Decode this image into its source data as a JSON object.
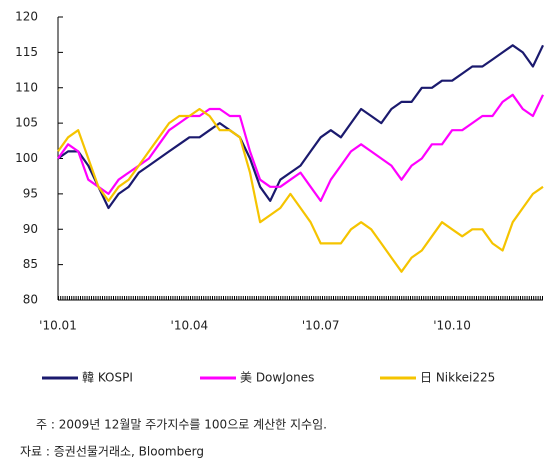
{
  "chart_data": {
    "type": "line",
    "categories": [
      "'10.01",
      null,
      null,
      null,
      null,
      null,
      null,
      null,
      null,
      null,
      null,
      null,
      null,
      "'10.04",
      null,
      null,
      null,
      null,
      null,
      null,
      null,
      null,
      null,
      null,
      null,
      null,
      "'10.07",
      null,
      null,
      null,
      null,
      null,
      null,
      null,
      null,
      null,
      null,
      null,
      null,
      "'10.10",
      null,
      null,
      null,
      null,
      null,
      null,
      null,
      null,
      null
    ],
    "series": [
      {
        "name": "韓 KOSPI",
        "color": "#1b1a6e",
        "values": [
          100,
          101,
          101,
          99,
          96,
          93,
          95,
          96,
          98,
          99,
          100,
          101,
          102,
          103,
          103,
          104,
          105,
          104,
          103,
          100,
          96,
          94,
          97,
          98,
          99,
          101,
          103,
          104,
          103,
          105,
          107,
          106,
          105,
          107,
          108,
          108,
          110,
          110,
          111,
          111,
          112,
          113,
          113,
          114,
          115,
          116,
          115,
          113,
          116
        ]
      },
      {
        "name": "美 DowJones",
        "color": "#ff00ff",
        "values": [
          100,
          102,
          101,
          97,
          96,
          95,
          97,
          98,
          99,
          100,
          102,
          104,
          105,
          106,
          106,
          107,
          107,
          106,
          106,
          101,
          97,
          96,
          96,
          97,
          98,
          96,
          94,
          97,
          99,
          101,
          102,
          101,
          100,
          99,
          97,
          99,
          100,
          102,
          102,
          104,
          104,
          105,
          106,
          106,
          108,
          109,
          107,
          106,
          109
        ]
      },
      {
        "name": "日 Nikkei225",
        "color": "#f5c400",
        "values": [
          101,
          103,
          104,
          100,
          96,
          94,
          96,
          97,
          99,
          101,
          103,
          105,
          106,
          106,
          107,
          106,
          104,
          104,
          103,
          98,
          91,
          92,
          93,
          95,
          93,
          91,
          88,
          88,
          88,
          90,
          91,
          90,
          88,
          86,
          84,
          86,
          87,
          89,
          91,
          90,
          89,
          90,
          90,
          88,
          87,
          91,
          93,
          95,
          96
        ]
      }
    ],
    "ylim": [
      80,
      120
    ],
    "yticks": [
      80,
      85,
      90,
      95,
      100,
      105,
      110,
      115,
      120
    ],
    "notes": [
      "주 : 2009년 12월말 주가지수를 100으로 계산한 지수임.",
      "자료 : 증권선물거래소, Bloomberg"
    ]
  }
}
